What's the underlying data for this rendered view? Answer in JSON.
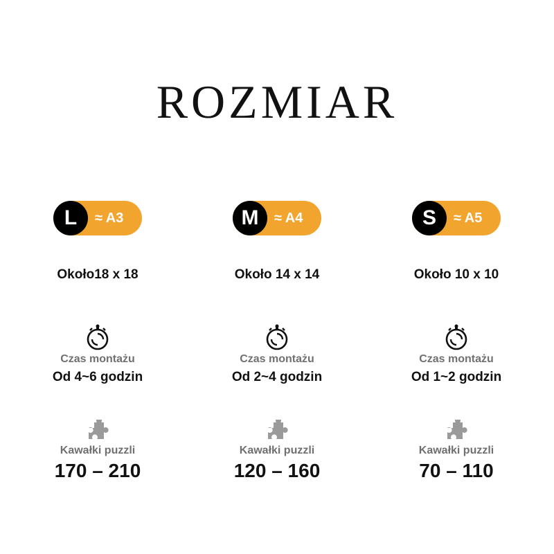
{
  "title": "ROZMIAR",
  "colors": {
    "accent": "#f2a52e",
    "dark": "#000000",
    "label_gray": "#707070"
  },
  "sizes": [
    {
      "size": "L",
      "paper": "≈ A3",
      "dims": "Około18 x 18",
      "time_label": "Czas montażu",
      "time": "Od 4~6 godzin",
      "pieces_label": "Kawałki puzzli",
      "pieces": "170 – 210"
    },
    {
      "size": "M",
      "paper": "≈ A4",
      "dims": "Około 14 x 14",
      "time_label": "Czas montażu",
      "time": "Od 2~4 godzin",
      "pieces_label": "Kawałki puzzli",
      "pieces": "120 – 160"
    },
    {
      "size": "S",
      "paper": "≈ A5",
      "dims": "Około 10 x 10",
      "time_label": "Czas montażu",
      "time": "Od 1~2 godzin",
      "pieces_label": "Kawałki puzzli",
      "pieces": "70 – 110"
    }
  ],
  "icons": {
    "timer": "stopwatch-icon",
    "pieces": "puzzle-piece-icon"
  }
}
